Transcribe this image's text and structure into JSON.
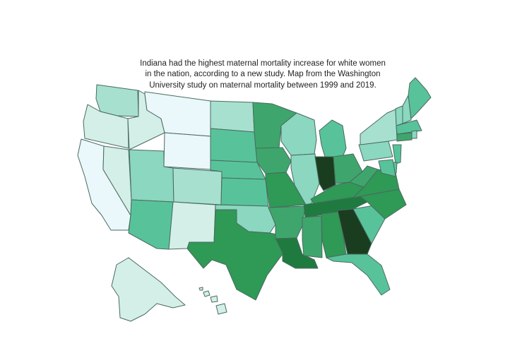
{
  "figure": {
    "title_lines": [
      "Indiana had the highest maternal mortality increase for white women",
      "in the nation, according to a new study. Map from the Washington",
      "University study on maternal mortality between 1999 and 2019."
    ]
  },
  "palette": {
    "1": "#eaf7fb",
    "2": "#d3efe8",
    "3": "#a7e0cf",
    "4": "#8bd7c0",
    "5": "#58c39a",
    "6": "#3ea66c",
    "7": "#2f9956",
    "8": "#1f7a40",
    "9": "#1a3d1f"
  },
  "states": [
    {
      "abbr": "WA",
      "level": 3
    },
    {
      "abbr": "OR",
      "level": 2
    },
    {
      "abbr": "CA",
      "level": 1
    },
    {
      "abbr": "NV",
      "level": 2
    },
    {
      "abbr": "ID",
      "level": 2
    },
    {
      "abbr": "MT",
      "level": 1
    },
    {
      "abbr": "WY",
      "level": 1
    },
    {
      "abbr": "UT",
      "level": 4
    },
    {
      "abbr": "AZ",
      "level": 5
    },
    {
      "abbr": "CO",
      "level": 3
    },
    {
      "abbr": "NM",
      "level": 2
    },
    {
      "abbr": "ND",
      "level": 3
    },
    {
      "abbr": "SD",
      "level": 5
    },
    {
      "abbr": "NE",
      "level": 5
    },
    {
      "abbr": "KS",
      "level": 5
    },
    {
      "abbr": "OK",
      "level": 4
    },
    {
      "abbr": "TX",
      "level": 7
    },
    {
      "abbr": "MN",
      "level": 6
    },
    {
      "abbr": "IA",
      "level": 6
    },
    {
      "abbr": "MO",
      "level": 7
    },
    {
      "abbr": "AR",
      "level": 6
    },
    {
      "abbr": "LA",
      "level": 8
    },
    {
      "abbr": "WI",
      "level": 4
    },
    {
      "abbr": "IL",
      "level": 4
    },
    {
      "abbr": "MI",
      "level": 5
    },
    {
      "abbr": "IN",
      "level": 9
    },
    {
      "abbr": "OH",
      "level": 6
    },
    {
      "abbr": "KY",
      "level": 7
    },
    {
      "abbr": "TN",
      "level": 8
    },
    {
      "abbr": "MS",
      "level": 6
    },
    {
      "abbr": "AL",
      "level": 7
    },
    {
      "abbr": "GA",
      "level": 9
    },
    {
      "abbr": "FL",
      "level": 5
    },
    {
      "abbr": "SC",
      "level": 5
    },
    {
      "abbr": "NC",
      "level": 7
    },
    {
      "abbr": "VA",
      "level": 7
    },
    {
      "abbr": "WV",
      "level": 6
    },
    {
      "abbr": "PA",
      "level": 4
    },
    {
      "abbr": "NY",
      "level": 3
    },
    {
      "abbr": "VT",
      "level": 4
    },
    {
      "abbr": "NH",
      "level": 4
    },
    {
      "abbr": "ME",
      "level": 5
    },
    {
      "abbr": "MA",
      "level": 5
    },
    {
      "abbr": "RI",
      "level": 4
    },
    {
      "abbr": "CT",
      "level": 6
    },
    {
      "abbr": "NJ",
      "level": 5
    },
    {
      "abbr": "DE",
      "level": 5
    },
    {
      "abbr": "MD",
      "level": 5
    },
    {
      "abbr": "AK",
      "level": 2
    },
    {
      "abbr": "HI",
      "level": 2
    }
  ]
}
